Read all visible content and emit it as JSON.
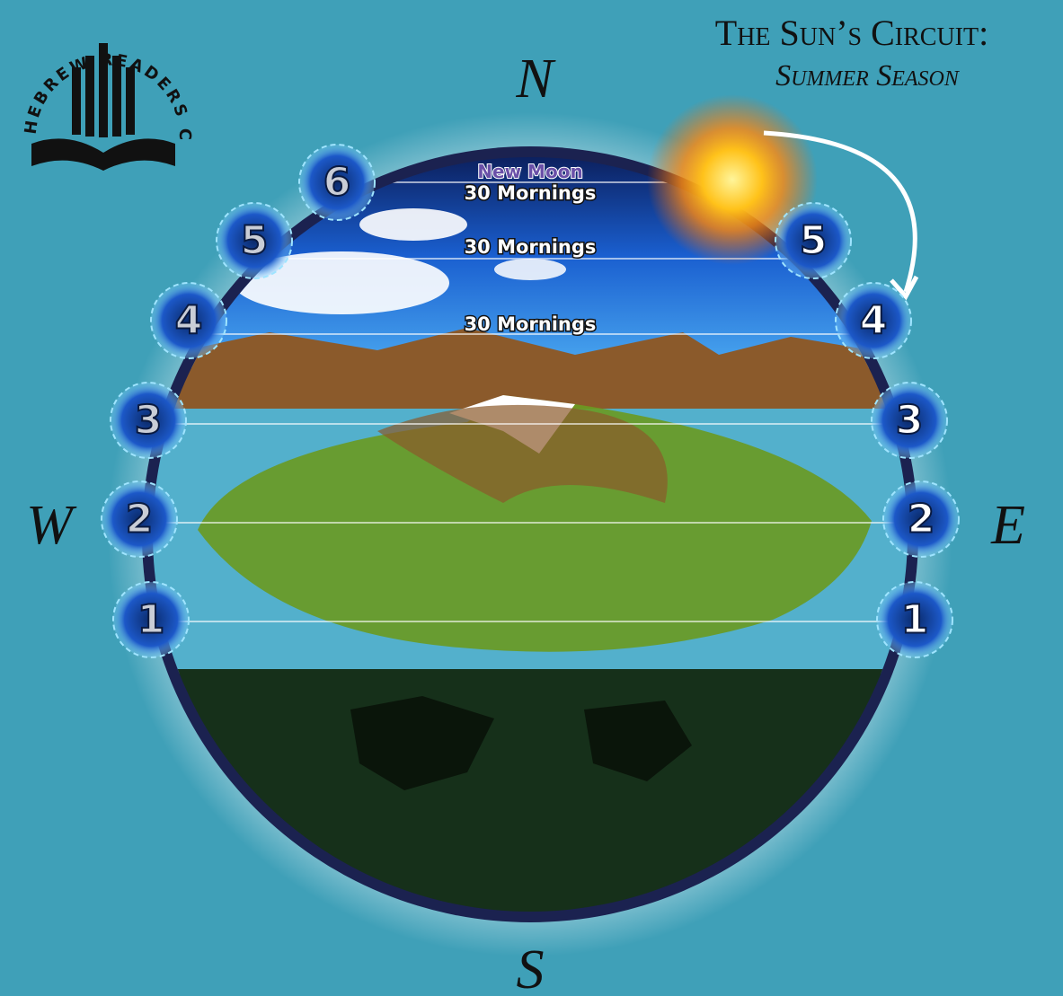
{
  "logo": {
    "text": "HEBREW READERS CHURCH"
  },
  "title": {
    "line1": "The Sun’s Circuit:",
    "line2": "Summer Season"
  },
  "compass": {
    "north": "N",
    "west": "W",
    "east": "E",
    "south": "S"
  },
  "west_gates": [
    "1",
    "2",
    "3",
    "4",
    "5",
    "6"
  ],
  "east_gates": [
    "1",
    "2",
    "3",
    "4",
    "5"
  ],
  "sky_labels": {
    "new_moon": "New Moon",
    "mornings": [
      "30 Mornings",
      "30 Mornings",
      "30 Mornings"
    ]
  }
}
